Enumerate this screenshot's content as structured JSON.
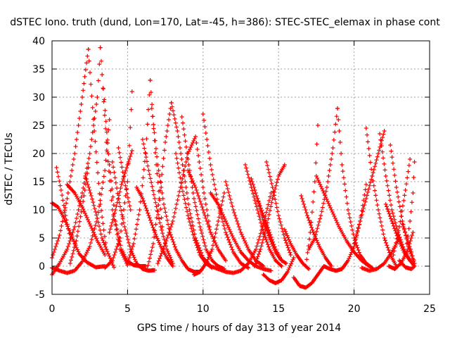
{
  "chart_data": {
    "type": "scatter",
    "title": "dSTEC Iono. truth (dund, Lon=170, Lat=-45, h=386): STEC-STEC_elemax in phase cont",
    "xlabel": "GPS time / hours of day 313 of year 2014",
    "ylabel": "dSTEC  / TECUs",
    "xlim": [
      0,
      25
    ],
    "ylim": [
      -5,
      40
    ],
    "xticks": [
      0,
      5,
      10,
      15,
      20,
      25
    ],
    "yticks": [
      -5,
      0,
      5,
      10,
      15,
      20,
      25,
      30,
      35,
      40
    ],
    "grid": true,
    "marker": "+",
    "color": "#ff0000",
    "series": [
      {
        "x": [
          0.0,
          0.5,
          1.0,
          1.5,
          2.0,
          2.4
        ],
        "y": [
          1.5,
          5.5,
          12.0,
          20.0,
          30.0,
          38.5
        ]
      },
      {
        "x": [
          2.4,
          2.8,
          3.2,
          3.6,
          4.1
        ],
        "y": [
          38.5,
          24.0,
          11.0,
          3.0,
          -0.2
        ]
      },
      {
        "x": [
          0.0,
          0.5,
          1.0,
          1.5,
          2.0,
          2.5,
          3.0,
          3.2
        ],
        "y": [
          -1.5,
          0.5,
          3.0,
          7.0,
          13.0,
          20.0,
          30.0,
          38.8
        ]
      },
      {
        "x": [
          3.2,
          3.6,
          4.0,
          4.5,
          5.0
        ],
        "y": [
          38.8,
          22.0,
          10.0,
          3.0,
          0.2
        ]
      },
      {
        "x": [
          0.0,
          0.4,
          0.8,
          1.2,
          1.5,
          1.8,
          2.3,
          2.9,
          3.5
        ],
        "y": [
          11.2,
          10.5,
          8.5,
          6.0,
          4.0,
          2.2,
          0.7,
          -0.2,
          0.0
        ]
      },
      {
        "x": [
          0.3,
          0.6,
          0.9,
          1.2
        ],
        "y": [
          17.5,
          13.5,
          9.0,
          5.0
        ]
      },
      {
        "x": [
          0.0,
          0.5,
          1.0,
          1.5,
          2.0,
          2.5,
          3.0,
          3.5,
          3.8
        ],
        "y": [
          -0.3,
          -0.8,
          -1.2,
          -0.8,
          0.8,
          3.5,
          8.5,
          17.0,
          26.0
        ]
      },
      {
        "x": [
          1.2,
          1.6,
          2.0,
          2.4
        ],
        "y": [
          0.5,
          4.5,
          10.5,
          17.5
        ]
      },
      {
        "x": [
          1.0,
          1.5,
          2.0,
          2.5,
          3.0,
          3.5
        ],
        "y": [
          14.5,
          13.0,
          10.5,
          7.5,
          4.5,
          2.0
        ]
      },
      {
        "x": [
          2.2,
          2.6,
          3.0,
          3.3,
          3.6
        ],
        "y": [
          16.0,
          12.5,
          8.5,
          5.0,
          3.0
        ]
      },
      {
        "x": [
          3.4,
          3.8,
          4.2,
          4.6,
          5.0,
          5.4,
          5.8,
          6.2
        ],
        "y": [
          31.5,
          18.0,
          8.0,
          3.0,
          0.8,
          0.2,
          0.0,
          0.0
        ]
      },
      {
        "x": [
          3.5,
          4.0,
          4.5,
          5.0,
          5.3
        ],
        "y": [
          -0.3,
          1.0,
          5.0,
          15.0,
          31.0
        ]
      },
      {
        "x": [
          3.8,
          4.2,
          4.6,
          5.0,
          5.3
        ],
        "y": [
          6.0,
          10.0,
          14.5,
          18.0,
          20.5
        ]
      },
      {
        "x": [
          4.0,
          4.4,
          4.8,
          5.2,
          5.6,
          6.0,
          6.4,
          6.8
        ],
        "y": [
          18.5,
          12.0,
          7.0,
          3.0,
          0.5,
          -0.5,
          -0.8,
          -0.7
        ]
      },
      {
        "x": [
          4.4,
          4.8,
          5.2
        ],
        "y": [
          21.0,
          15.0,
          10.0
        ]
      },
      {
        "x": [
          5.0,
          5.4,
          5.8,
          6.2,
          6.5
        ],
        "y": [
          0.5,
          4.0,
          10.0,
          20.0,
          33.0
        ]
      },
      {
        "x": [
          5.6,
          6.0,
          6.4,
          6.8,
          7.2,
          7.6,
          8.0
        ],
        "y": [
          14.0,
          12.0,
          9.0,
          6.0,
          3.5,
          1.5,
          0.0
        ]
      },
      {
        "x": [
          6.0,
          6.4,
          6.8,
          7.2,
          7.6,
          8.0
        ],
        "y": [
          22.5,
          17.0,
          12.0,
          7.0,
          3.0,
          0.5
        ]
      },
      {
        "x": [
          6.5,
          6.9,
          7.3
        ],
        "y": [
          33.0,
          18.0,
          7.0
        ]
      },
      {
        "x": [
          6.3,
          6.7,
          7.1,
          7.5,
          7.9
        ],
        "y": [
          -0.5,
          4.0,
          12.0,
          22.0,
          29.0
        ]
      },
      {
        "x": [
          6.6,
          7.0,
          7.4,
          7.8,
          8.2,
          8.6,
          9.0,
          9.4,
          9.8
        ],
        "y": [
          28.0,
          18.0,
          11.0,
          6.0,
          3.0,
          1.0,
          -0.5,
          -1.0,
          -1.0
        ]
      },
      {
        "x": [
          7.0,
          7.5,
          8.0,
          8.5,
          9.0,
          9.5,
          10.0,
          10.5
        ],
        "y": [
          0.5,
          4.0,
          8.0,
          14.0,
          20.0,
          23.0,
          14.0,
          6.0
        ]
      },
      {
        "x": [
          7.9,
          8.3,
          8.7,
          9.1,
          9.5,
          10.0,
          10.5,
          11.0
        ],
        "y": [
          29.0,
          24.0,
          17.0,
          10.0,
          5.0,
          1.5,
          0.0,
          -0.5
        ]
      },
      {
        "x": [
          8.2,
          8.6,
          9.0,
          9.4,
          9.8,
          10.2,
          10.6
        ],
        "y": [
          20.0,
          14.0,
          9.0,
          5.0,
          2.0,
          0.5,
          -0.3
        ]
      },
      {
        "x": [
          8.6,
          9.0,
          9.4,
          9.8,
          10.2,
          10.6,
          11.0,
          11.4
        ],
        "y": [
          26.5,
          19.0,
          12.0,
          7.0,
          3.0,
          1.0,
          0.0,
          -0.5
        ]
      },
      {
        "x": [
          9.4,
          9.8,
          10.2,
          10.6,
          11.0,
          11.4
        ],
        "y": [
          -1.5,
          -1.0,
          0.5,
          3.0,
          8.0,
          13.0
        ]
      },
      {
        "x": [
          9.0,
          9.5,
          10.0,
          10.5,
          11.0,
          11.5
        ],
        "y": [
          17.0,
          14.0,
          10.0,
          6.0,
          3.0,
          1.0
        ]
      },
      {
        "x": [
          10.0,
          10.5,
          11.0,
          11.5,
          12.0,
          12.5,
          13.0
        ],
        "y": [
          27.0,
          18.0,
          11.0,
          6.0,
          2.5,
          0.5,
          -0.3
        ]
      },
      {
        "x": [
          11.0,
          11.5,
          12.0,
          12.5,
          13.0,
          13.5,
          14.0,
          14.5
        ],
        "y": [
          -0.5,
          -1.0,
          -1.2,
          -0.8,
          0.5,
          3.0,
          7.5,
          13.0
        ]
      },
      {
        "x": [
          10.5,
          11.0,
          11.5,
          12.0,
          12.5,
          13.0,
          13.5,
          14.0,
          14.5
        ],
        "y": [
          13.0,
          11.0,
          8.0,
          5.0,
          2.5,
          1.0,
          0.0,
          -0.5,
          -0.8
        ]
      },
      {
        "x": [
          11.5,
          12.0,
          12.5,
          13.0,
          13.5,
          14.0
        ],
        "y": [
          15.0,
          10.0,
          6.0,
          3.0,
          1.0,
          0.0
        ]
      },
      {
        "x": [
          12.8,
          13.2,
          13.6,
          14.0,
          14.4,
          14.8,
          15.2
        ],
        "y": [
          18.0,
          14.0,
          10.0,
          6.0,
          3.0,
          1.0,
          0.0
        ]
      },
      {
        "x": [
          13.2,
          13.6,
          14.0,
          14.4,
          14.8,
          15.2,
          15.5
        ],
        "y": [
          15.5,
          12.0,
          8.0,
          5.0,
          2.5,
          1.0,
          0.5
        ]
      },
      {
        "x": [
          13.6,
          14.0,
          14.4,
          14.8,
          15.2
        ],
        "y": [
          12.0,
          9.0,
          6.0,
          3.0,
          1.0
        ]
      },
      {
        "x": [
          14.2,
          14.6,
          15.0,
          15.4,
          15.8
        ],
        "y": [
          18.5,
          14.0,
          9.0,
          5.0,
          2.0
        ]
      },
      {
        "x": [
          14.0,
          14.4,
          14.8,
          15.2,
          15.6,
          16.0
        ],
        "y": [
          -1.5,
          -2.5,
          -3.0,
          -2.5,
          -1.0,
          1.5
        ]
      },
      {
        "x": [
          13.4,
          13.8,
          14.2,
          14.6,
          15.0,
          15.4
        ],
        "y": [
          0.0,
          3.0,
          7.0,
          12.0,
          16.0,
          18.0
        ]
      },
      {
        "x": [
          15.4,
          15.8,
          16.2,
          16.6,
          17.0
        ],
        "y": [
          6.5,
          4.0,
          2.0,
          0.5,
          -0.5
        ]
      },
      {
        "x": [
          16.0,
          16.4,
          16.8,
          17.2,
          17.6,
          18.0
        ],
        "y": [
          -2.0,
          -3.5,
          -3.8,
          -3.0,
          -1.5,
          0.0
        ]
      },
      {
        "x": [
          16.5,
          16.9,
          17.3,
          17.7,
          18.1,
          18.5
        ],
        "y": [
          12.5,
          9.0,
          6.0,
          3.5,
          1.5,
          0.0
        ]
      },
      {
        "x": [
          16.8,
          17.1,
          17.4,
          17.6
        ],
        "y": [
          0.0,
          6.0,
          15.0,
          25.0
        ]
      },
      {
        "x": [
          17.0,
          17.4,
          17.8,
          18.2,
          18.6,
          18.9
        ],
        "y": [
          3.0,
          5.0,
          9.0,
          14.0,
          21.0,
          28.0
        ]
      },
      {
        "x": [
          18.9,
          19.2,
          19.6,
          20.0,
          20.4,
          20.8,
          21.2
        ],
        "y": [
          28.0,
          18.0,
          10.0,
          5.0,
          2.0,
          0.5,
          -0.3
        ]
      },
      {
        "x": [
          18.0,
          18.4,
          18.8,
          19.2,
          19.6,
          20.0,
          20.4,
          20.8
        ],
        "y": [
          0.0,
          -0.5,
          -0.8,
          -0.5,
          1.0,
          3.5,
          8.0,
          14.5
        ]
      },
      {
        "x": [
          17.5,
          18.0,
          18.5,
          19.0,
          19.5,
          20.0,
          20.5,
          21.0
        ],
        "y": [
          16.0,
          13.0,
          10.0,
          7.0,
          4.5,
          2.5,
          1.0,
          0.0
        ]
      },
      {
        "x": [
          20.0,
          20.4,
          20.8,
          21.2,
          21.6,
          22.0
        ],
        "y": [
          4.0,
          8.0,
          12.0,
          16.0,
          20.0,
          24.0
        ]
      },
      {
        "x": [
          20.8,
          21.2,
          21.6,
          22.0,
          22.4,
          22.8
        ],
        "y": [
          24.5,
          16.0,
          10.0,
          5.0,
          2.0,
          0.0
        ]
      },
      {
        "x": [
          20.5,
          21.0,
          21.5,
          22.0,
          22.5,
          23.0
        ],
        "y": [
          -0.3,
          -0.8,
          -0.5,
          0.5,
          2.5,
          5.0
        ]
      },
      {
        "x": [
          21.7,
          22.1,
          22.5,
          22.9,
          23.3,
          23.7
        ],
        "y": [
          23.5,
          16.0,
          10.0,
          6.0,
          3.0,
          1.0
        ]
      },
      {
        "x": [
          22.1,
          22.5,
          22.9,
          23.3,
          23.7,
          24.0
        ],
        "y": [
          11.0,
          8.0,
          5.0,
          2.5,
          1.0,
          0.0
        ]
      },
      {
        "x": [
          22.4,
          22.8,
          23.2,
          23.6,
          24.0
        ],
        "y": [
          21.5,
          14.0,
          8.0,
          3.5,
          0.5
        ]
      },
      {
        "x": [
          22.6,
          23.0,
          23.4,
          23.7
        ],
        "y": [
          2.0,
          7.0,
          13.5,
          19.0
        ]
      },
      {
        "x": [
          22.3,
          22.7,
          23.1,
          23.5,
          23.9
        ],
        "y": [
          0.0,
          -0.5,
          0.5,
          2.5,
          6.0
        ]
      },
      {
        "x": [
          23.2,
          23.5,
          23.8,
          24.0
        ],
        "y": [
          7.5,
          5.0,
          2.5,
          0.5
        ]
      },
      {
        "x": [
          23.5,
          23.7,
          23.9,
          24.0
        ],
        "y": [
          4.0,
          8.0,
          13.0,
          18.5
        ]
      },
      {
        "x": [
          23.0,
          23.4,
          23.8,
          24.0
        ],
        "y": [
          1.0,
          -0.2,
          -0.5,
          0.0
        ]
      }
    ]
  }
}
